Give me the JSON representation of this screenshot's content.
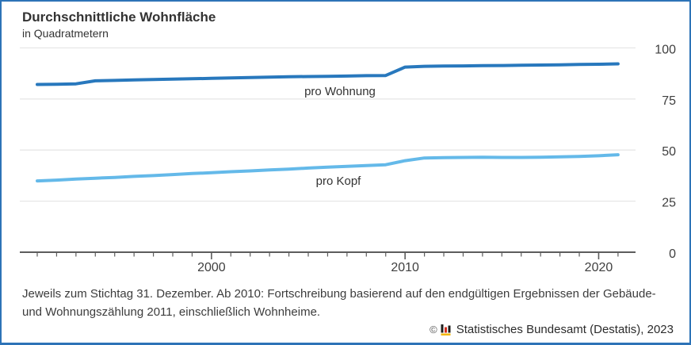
{
  "header": {
    "title": "Durchschnittliche Wohnfläche",
    "subtitle": "in Quadratmetern"
  },
  "chart_data": {
    "type": "line",
    "title": "Durchschnittliche Wohnfläche",
    "unit": "in Quadratmetern",
    "x": [
      1991,
      1992,
      1993,
      1994,
      1995,
      1996,
      1997,
      1998,
      1999,
      2000,
      2001,
      2002,
      2003,
      2004,
      2005,
      2006,
      2007,
      2008,
      2009,
      2010,
      2011,
      2012,
      2013,
      2014,
      2015,
      2016,
      2017,
      2018,
      2019,
      2020,
      2021
    ],
    "series": [
      {
        "id": "pro-wohnung",
        "name": "pro Wohnung",
        "color": "#2878bd",
        "values": [
          82.1,
          82.2,
          82.4,
          83.9,
          84.1,
          84.3,
          84.5,
          84.7,
          84.9,
          85.1,
          85.3,
          85.5,
          85.7,
          85.9,
          86.0,
          86.1,
          86.2,
          86.4,
          86.5,
          90.6,
          91.0,
          91.1,
          91.2,
          91.3,
          91.4,
          91.5,
          91.6,
          91.7,
          91.9,
          92.0,
          92.2
        ]
      },
      {
        "id": "pro-kopf",
        "name": "pro Kopf",
        "color": "#64b9e9",
        "values": [
          34.9,
          35.3,
          35.8,
          36.2,
          36.6,
          37.1,
          37.5,
          38.0,
          38.5,
          38.9,
          39.4,
          39.8,
          40.3,
          40.7,
          41.2,
          41.6,
          42.0,
          42.4,
          42.8,
          44.8,
          46.1,
          46.3,
          46.4,
          46.5,
          46.4,
          46.4,
          46.5,
          46.7,
          46.9,
          47.2,
          47.7
        ]
      }
    ],
    "ylim": [
      0,
      100
    ],
    "y_ticks": [
      0,
      25,
      50,
      75,
      100
    ],
    "x_tick_labels": [
      "2000",
      "2010",
      "2020"
    ],
    "x_minor_tick_years": [
      1991,
      2021
    ],
    "grid": "horizontal",
    "y_axis_side": "right",
    "legend_position": "inline-labels"
  },
  "footnote": {
    "text": "Jeweils zum Stichtag 31. Dezember. Ab 2010: Fortschreibung basierend auf den endgültigen Ergebnissen der Gebäude- und Wohnungszählung 2011, einschließlich Wohnheime."
  },
  "credit": {
    "symbol": "©",
    "logo": "destatis-logo",
    "text": "Statistisches Bundesamt (Destatis), 2023"
  },
  "colors": {
    "frame_border": "#2d73b7",
    "line_pro_wohnung": "#2878bd",
    "line_pro_kopf": "#64b9e9",
    "gridline": "#e7e7e7",
    "axis": "#5c5c5c",
    "text": "#333333",
    "logo_black": "#1d1d1b",
    "logo_red": "#d42e1f",
    "logo_gold": "#f2b705"
  }
}
